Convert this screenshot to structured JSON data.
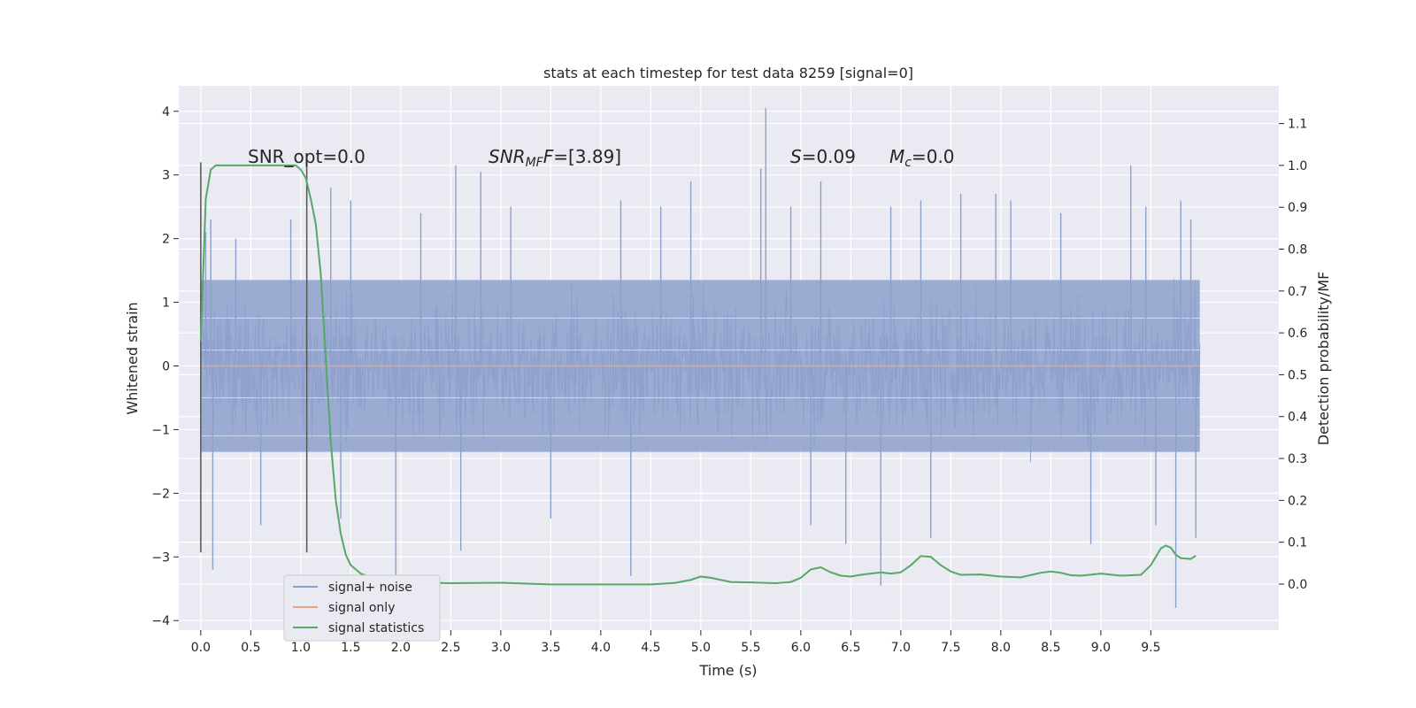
{
  "chart_data": {
    "type": "line",
    "title": "stats at each timestep for test data 8259 [signal=0]",
    "xlabel": "Time (s)",
    "ylabel": "Whitened strain",
    "y2label": "Detection probability/MF",
    "xlim": [
      -0.22,
      10.78
    ],
    "ylim": [
      -4.15,
      4.4
    ],
    "y2lim": [
      -0.11,
      1.19
    ],
    "x_ticks": [
      0.0,
      0.5,
      1.0,
      1.5,
      2.0,
      2.5,
      3.0,
      3.5,
      4.0,
      4.5,
      5.0,
      5.5,
      6.0,
      6.5,
      7.0,
      7.5,
      8.0,
      8.5,
      9.0,
      9.5
    ],
    "x_tick_labels": [
      "0.0",
      "0.5",
      "1.0",
      "1.5",
      "2.0",
      "2.5",
      "3.0",
      "3.5",
      "4.0",
      "4.5",
      "5.0",
      "5.5",
      "6.0",
      "6.5",
      "7.0",
      "7.5",
      "8.0",
      "8.5",
      "9.0",
      "9.5"
    ],
    "y_ticks": [
      -4,
      -3,
      -2,
      -1,
      0,
      1,
      2,
      3,
      4
    ],
    "y_tick_labels": [
      "−4",
      "−3",
      "−2",
      "−1",
      "0",
      "1",
      "2",
      "3",
      "4"
    ],
    "y2_ticks": [
      0.0,
      0.1,
      0.2,
      0.3,
      0.4,
      0.5,
      0.6,
      0.7,
      0.8,
      0.9,
      1.0,
      1.1
    ],
    "y2_tick_labels": [
      "0.0",
      "0.1",
      "0.2",
      "0.3",
      "0.4",
      "0.5",
      "0.6",
      "0.7",
      "0.8",
      "0.9",
      "1.0",
      "1.1"
    ],
    "grid": true,
    "legend_position": "lower-left",
    "annotations": {
      "snr_opt": "SNR_opt=0.0",
      "snr_mf_main": "SNR",
      "snr_mf_sub": "MF",
      "snr_mf_value": "=[3.89]",
      "s_main": "S",
      "s_value": "=0.09",
      "mc_main": "M",
      "mc_sub": "c",
      "mc_value": "=0.0"
    },
    "window_markers": {
      "x": [
        0.0,
        1.06
      ],
      "y_range": [
        -2.93,
        3.2
      ]
    },
    "series": [
      {
        "name": "signal+ noise",
        "color": "#8da0cb",
        "x_range": [
          0.0,
          9.99
        ],
        "core_amplitude": 1.35,
        "spike_peaks": [
          {
            "x": 0.05,
            "y": 2.1
          },
          {
            "x": 0.1,
            "y": 2.3
          },
          {
            "x": 0.12,
            "y": -3.2
          },
          {
            "x": 0.35,
            "y": 2.0
          },
          {
            "x": 0.6,
            "y": -2.5
          },
          {
            "x": 0.9,
            "y": 2.3
          },
          {
            "x": 1.3,
            "y": 2.8
          },
          {
            "x": 1.4,
            "y": -2.4
          },
          {
            "x": 1.5,
            "y": 2.6
          },
          {
            "x": 1.95,
            "y": -3.3
          },
          {
            "x": 2.2,
            "y": 2.4
          },
          {
            "x": 2.55,
            "y": 3.15
          },
          {
            "x": 2.6,
            "y": -2.9
          },
          {
            "x": 2.8,
            "y": 3.05
          },
          {
            "x": 3.1,
            "y": 2.5
          },
          {
            "x": 3.5,
            "y": -2.4
          },
          {
            "x": 4.2,
            "y": 2.6
          },
          {
            "x": 4.3,
            "y": -3.3
          },
          {
            "x": 4.6,
            "y": 2.5
          },
          {
            "x": 4.9,
            "y": 2.9
          },
          {
            "x": 5.6,
            "y": 3.1
          },
          {
            "x": 5.65,
            "y": 4.05
          },
          {
            "x": 5.9,
            "y": 2.5
          },
          {
            "x": 6.1,
            "y": -2.5
          },
          {
            "x": 6.2,
            "y": 2.9
          },
          {
            "x": 6.45,
            "y": -2.8
          },
          {
            "x": 6.8,
            "y": -3.45
          },
          {
            "x": 6.9,
            "y": 2.5
          },
          {
            "x": 7.2,
            "y": 2.6
          },
          {
            "x": 7.3,
            "y": -2.7
          },
          {
            "x": 7.6,
            "y": 2.7
          },
          {
            "x": 7.95,
            "y": 2.7
          },
          {
            "x": 8.1,
            "y": 2.6
          },
          {
            "x": 8.6,
            "y": 2.4
          },
          {
            "x": 8.9,
            "y": -2.8
          },
          {
            "x": 9.3,
            "y": 3.15
          },
          {
            "x": 9.45,
            "y": 2.5
          },
          {
            "x": 9.55,
            "y": -2.5
          },
          {
            "x": 9.75,
            "y": -3.8
          },
          {
            "x": 9.8,
            "y": 2.6
          },
          {
            "x": 9.9,
            "y": 2.3
          },
          {
            "x": 9.95,
            "y": -2.7
          }
        ]
      },
      {
        "name": "signal only",
        "color": "#e5a58a",
        "x": [
          0.0,
          9.99
        ],
        "y": [
          0.0,
          0.0
        ]
      },
      {
        "name": "signal statistics",
        "color": "#55a868",
        "axis": "right",
        "x": [
          0.0,
          0.05,
          0.1,
          0.15,
          0.25,
          0.5,
          0.75,
          0.95,
          1.0,
          1.05,
          1.1,
          1.15,
          1.2,
          1.25,
          1.3,
          1.35,
          1.4,
          1.45,
          1.5,
          1.6,
          1.75,
          2.0,
          2.5,
          3.0,
          3.5,
          4.0,
          4.5,
          4.75,
          4.9,
          5.0,
          5.1,
          5.3,
          5.5,
          5.75,
          5.9,
          6.0,
          6.1,
          6.2,
          6.3,
          6.4,
          6.5,
          6.6,
          6.8,
          6.9,
          7.0,
          7.1,
          7.2,
          7.3,
          7.4,
          7.5,
          7.6,
          7.8,
          8.0,
          8.2,
          8.4,
          8.5,
          8.6,
          8.7,
          8.8,
          9.0,
          9.2,
          9.4,
          9.5,
          9.6,
          9.65,
          9.7,
          9.75,
          9.8,
          9.9,
          9.95
        ],
        "y": [
          0.58,
          0.92,
          0.99,
          1.0,
          1.0,
          1.0,
          1.0,
          1.0,
          0.99,
          0.97,
          0.92,
          0.86,
          0.74,
          0.54,
          0.34,
          0.2,
          0.12,
          0.07,
          0.045,
          0.025,
          0.012,
          0.005,
          0.002,
          0.003,
          -0.001,
          -0.001,
          -0.001,
          0.003,
          0.01,
          0.018,
          0.015,
          0.005,
          0.004,
          0.002,
          0.005,
          0.015,
          0.035,
          0.04,
          0.028,
          0.02,
          0.018,
          0.022,
          0.028,
          0.025,
          0.028,
          0.045,
          0.067,
          0.065,
          0.045,
          0.03,
          0.022,
          0.023,
          0.018,
          0.016,
          0.027,
          0.03,
          0.027,
          0.021,
          0.02,
          0.025,
          0.02,
          0.022,
          0.045,
          0.085,
          0.092,
          0.087,
          0.07,
          0.062,
          0.06,
          0.068
        ]
      }
    ]
  }
}
